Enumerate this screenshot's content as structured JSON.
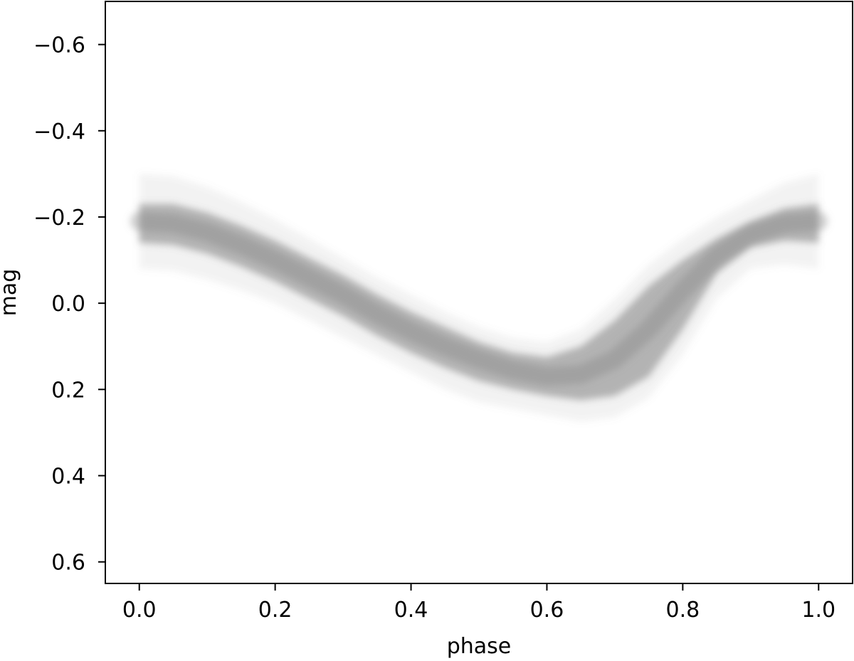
{
  "chart_data": {
    "type": "line",
    "title": "",
    "xlabel": "phase",
    "ylabel": "mag",
    "xlim": [
      -0.05,
      1.05
    ],
    "ylim": [
      0.65,
      -0.7
    ],
    "y_inverted": true,
    "grid": false,
    "legend": "none",
    "x_ticks": [
      {
        "value": 0.0,
        "label": "0.0"
      },
      {
        "value": 0.2,
        "label": "0.2"
      },
      {
        "value": 0.4,
        "label": "0.4"
      },
      {
        "value": 0.6,
        "label": "0.6"
      },
      {
        "value": 0.8,
        "label": "0.8"
      },
      {
        "value": 1.0,
        "label": "1.0"
      }
    ],
    "y_ticks": [
      {
        "value": -0.6,
        "label": "−0.6"
      },
      {
        "value": -0.4,
        "label": "−0.4"
      },
      {
        "value": -0.2,
        "label": "−0.2"
      },
      {
        "value": 0.0,
        "label": "0.0"
      },
      {
        "value": 0.2,
        "label": "0.2"
      },
      {
        "value": 0.4,
        "label": "0.4"
      },
      {
        "value": 0.6,
        "label": "0.6"
      }
    ],
    "band_color": "#7f7f7f",
    "series": [
      {
        "role": "band-median",
        "x": [
          0.0,
          0.05,
          0.1,
          0.15,
          0.2,
          0.25,
          0.3,
          0.35,
          0.4,
          0.45,
          0.5,
          0.55,
          0.6,
          0.65,
          0.7,
          0.75,
          0.8,
          0.85,
          0.9,
          0.95,
          1.0
        ],
        "y": [
          -0.19,
          -0.185,
          -0.165,
          -0.135,
          -0.1,
          -0.06,
          -0.02,
          0.025,
          0.065,
          0.1,
          0.13,
          0.155,
          0.17,
          0.165,
          0.13,
          0.06,
          -0.03,
          -0.11,
          -0.16,
          -0.185,
          -0.19
        ]
      },
      {
        "role": "band-upper",
        "x": [
          0.0,
          0.05,
          0.1,
          0.15,
          0.2,
          0.25,
          0.3,
          0.35,
          0.4,
          0.45,
          0.5,
          0.55,
          0.6,
          0.65,
          0.7,
          0.75,
          0.8,
          0.85,
          0.9,
          0.95,
          1.0
        ],
        "y": [
          -0.23,
          -0.23,
          -0.21,
          -0.18,
          -0.145,
          -0.105,
          -0.065,
          -0.02,
          0.02,
          0.055,
          0.09,
          0.115,
          0.125,
          0.1,
          0.04,
          -0.04,
          -0.1,
          -0.15,
          -0.19,
          -0.22,
          -0.23
        ]
      },
      {
        "role": "band-lower",
        "x": [
          0.0,
          0.05,
          0.1,
          0.15,
          0.2,
          0.25,
          0.3,
          0.35,
          0.4,
          0.45,
          0.5,
          0.55,
          0.6,
          0.65,
          0.7,
          0.75,
          0.8,
          0.85,
          0.9,
          0.95,
          1.0
        ],
        "y": [
          -0.14,
          -0.135,
          -0.115,
          -0.085,
          -0.05,
          -0.01,
          0.03,
          0.075,
          0.115,
          0.15,
          0.18,
          0.2,
          0.215,
          0.225,
          0.215,
          0.17,
          0.06,
          -0.07,
          -0.13,
          -0.145,
          -0.14
        ]
      },
      {
        "role": "outer-upper",
        "x": [
          0.0,
          0.05,
          0.1,
          0.15,
          0.2,
          0.25,
          0.3,
          0.35,
          0.4,
          0.45,
          0.5,
          0.55,
          0.6,
          0.65,
          0.7,
          0.75,
          0.8,
          0.85,
          0.9,
          0.95,
          1.0
        ],
        "y": [
          -0.3,
          -0.295,
          -0.27,
          -0.235,
          -0.195,
          -0.15,
          -0.105,
          -0.06,
          -0.02,
          0.02,
          0.055,
          0.08,
          0.09,
          0.06,
          -0.01,
          -0.09,
          -0.15,
          -0.2,
          -0.24,
          -0.28,
          -0.3
        ]
      },
      {
        "role": "outer-lower",
        "x": [
          0.0,
          0.05,
          0.1,
          0.15,
          0.2,
          0.25,
          0.3,
          0.35,
          0.4,
          0.45,
          0.5,
          0.55,
          0.6,
          0.65,
          0.7,
          0.75,
          0.8,
          0.85,
          0.9,
          0.95,
          1.0
        ],
        "y": [
          -0.08,
          -0.075,
          -0.055,
          -0.03,
          0.0,
          0.04,
          0.08,
          0.12,
          0.16,
          0.2,
          0.23,
          0.245,
          0.26,
          0.275,
          0.265,
          0.22,
          0.12,
          -0.01,
          -0.08,
          -0.09,
          -0.08
        ]
      }
    ]
  }
}
